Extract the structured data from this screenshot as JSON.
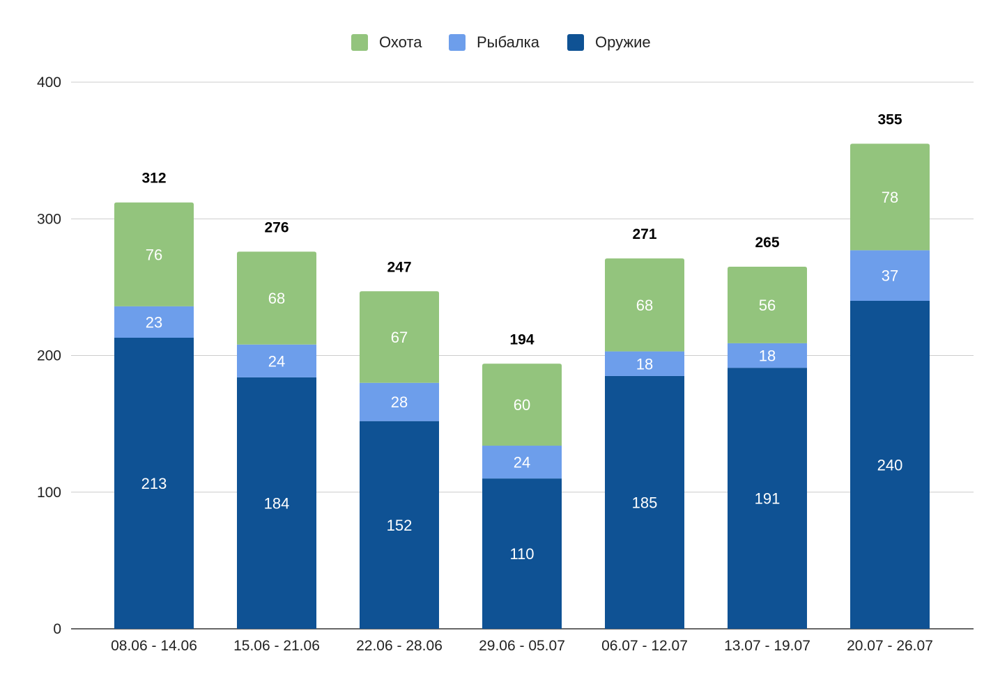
{
  "chart_data": {
    "type": "bar",
    "stacked": true,
    "categories": [
      "08.06 - 14.06",
      "15.06 - 21.06",
      "22.06 - 28.06",
      "29.06 - 05.07",
      "06.07 - 12.07",
      "13.07 - 19.07",
      "20.07 - 26.07"
    ],
    "series": [
      {
        "name": "Оружие",
        "color": "#0f5294",
        "values": [
          213,
          184,
          152,
          110,
          185,
          191,
          240
        ]
      },
      {
        "name": "Рыбалка",
        "color": "#6d9eeb",
        "values": [
          23,
          24,
          28,
          24,
          18,
          18,
          37
        ]
      },
      {
        "name": "Охота",
        "color": "#93c47d",
        "values": [
          76,
          68,
          67,
          60,
          68,
          56,
          78
        ]
      }
    ],
    "totals": [
      312,
      276,
      247,
      194,
      271,
      265,
      355
    ],
    "legend": [
      "Охота",
      "Рыбалка",
      "Оружие"
    ],
    "legend_position": "top-center",
    "ylim": [
      0,
      400
    ],
    "yticks": [
      "0",
      "100",
      "200",
      "300",
      "400"
    ],
    "grid": true
  }
}
